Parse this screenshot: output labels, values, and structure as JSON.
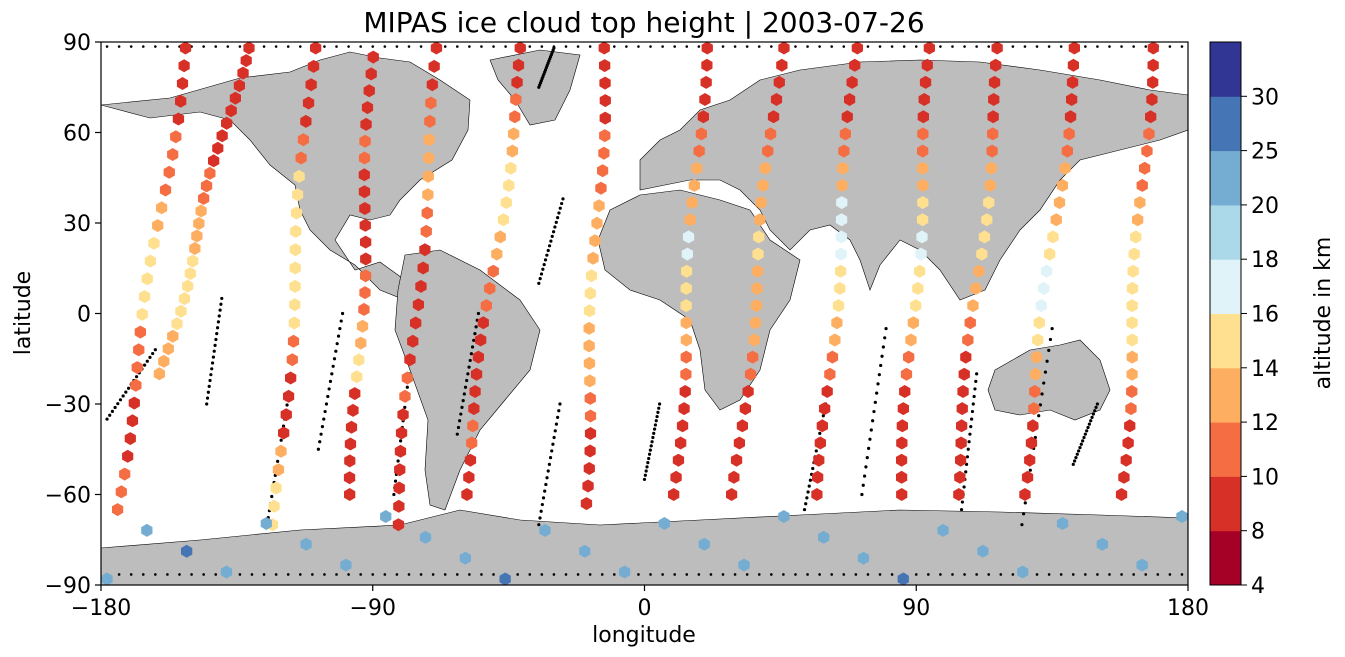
{
  "chart_data": {
    "type": "scatter",
    "title": "MIPAS ice cloud top height | 2003-07-26",
    "xlabel": "longitude",
    "ylabel": "latitude",
    "xlim": [
      -180,
      180
    ],
    "ylim": [
      -90,
      90
    ],
    "xticks": [
      "−180",
      "−90",
      "0",
      "90",
      "180"
    ],
    "yticks": [
      "90",
      "60",
      "30",
      "0",
      "−30",
      "−60",
      "−90"
    ],
    "background_map": "world coastlines, land shaded gray",
    "colorbar": {
      "label": "altitude in km",
      "ticks": [
        "4",
        "8",
        "10",
        "12",
        "14",
        "16",
        "18",
        "20",
        "25",
        "30"
      ],
      "colors": [
        "#a50026",
        "#d73027",
        "#f46d43",
        "#fdae61",
        "#fee090",
        "#e0f3f8",
        "#abd9e9",
        "#74add1",
        "#4575b4",
        "#313695"
      ]
    },
    "orbit_tracks": [
      {
        "start": [
          -152,
          88
        ],
        "end": [
          -175,
          -65
        ],
        "values": [
          8,
          9,
          10,
          11,
          13,
          15,
          14,
          11,
          10,
          9,
          8,
          10
        ]
      },
      {
        "start": [
          -132,
          88
        ],
        "end": [
          -160,
          -20
        ],
        "values": [
          8,
          8,
          9,
          10,
          12,
          14,
          15,
          13
        ]
      },
      {
        "start": [
          -110,
          88
        ],
        "end": [
          -122,
          -70
        ],
        "values": [
          8,
          9,
          10,
          14,
          15,
          15,
          14,
          11,
          9,
          8,
          13,
          14
        ]
      },
      {
        "start": [
          -90,
          85
        ],
        "end": [
          -97,
          -60
        ],
        "values": [
          8,
          9,
          10,
          9,
          8,
          9,
          10,
          13,
          14,
          9,
          8,
          8
        ]
      },
      {
        "start": [
          -68,
          88
        ],
        "end": [
          -82,
          -70
        ],
        "values": [
          9,
          10,
          12,
          13,
          10,
          9,
          8,
          9,
          10,
          8,
          9,
          8
        ]
      },
      {
        "start": [
          -40,
          88
        ],
        "end": [
          -60,
          -60
        ],
        "values": [
          9,
          10,
          12,
          14,
          15,
          13,
          10,
          9,
          8,
          9,
          10,
          8
        ]
      },
      {
        "start": [
          -13,
          88
        ],
        "end": [
          -20,
          -63
        ],
        "values": [
          8,
          9,
          10,
          11,
          12,
          13,
          14,
          13,
          12,
          10,
          9,
          8
        ]
      },
      {
        "start": [
          20,
          88
        ],
        "end": [
          10,
          -60
        ],
        "values": [
          8,
          9,
          10,
          12,
          13,
          16,
          14,
          12,
          10,
          9,
          8,
          8
        ]
      },
      {
        "start": [
          45,
          88
        ],
        "end": [
          30,
          -60
        ],
        "values": [
          8,
          9,
          10,
          12,
          13,
          14,
          13,
          12,
          10,
          9,
          8,
          8
        ]
      },
      {
        "start": [
          70,
          88
        ],
        "end": [
          58,
          -60
        ],
        "values": [
          8,
          9,
          10,
          12,
          16,
          17,
          15,
          13,
          11,
          9,
          8,
          8
        ]
      },
      {
        "start": [
          95,
          88
        ],
        "end": [
          85,
          -60
        ],
        "values": [
          8,
          9,
          10,
          13,
          15,
          16,
          14,
          12,
          10,
          9,
          8,
          8
        ]
      },
      {
        "start": [
          118,
          88
        ],
        "end": [
          103,
          -60
        ],
        "values": [
          8,
          9,
          10,
          12,
          14,
          15,
          13,
          11,
          9,
          8,
          9,
          8
        ]
      },
      {
        "start": [
          143,
          88
        ],
        "end": [
          125,
          -60
        ],
        "values": [
          8,
          9,
          10,
          12,
          13,
          15,
          16,
          14,
          12,
          10,
          9,
          8
        ]
      },
      {
        "start": [
          168,
          88
        ],
        "end": [
          158,
          -60
        ],
        "values": [
          8,
          9,
          10,
          11,
          12,
          14,
          15,
          14,
          12,
          10,
          9,
          8
        ]
      }
    ],
    "southern_points": {
      "lat_range": [
        -88,
        -65
      ],
      "values": [
        20,
        22,
        25,
        21,
        20,
        24,
        22,
        20,
        21,
        23,
        25,
        20,
        22,
        21,
        24,
        20,
        22,
        23,
        21,
        20,
        25,
        22,
        20,
        21,
        23,
        24,
        20,
        22
      ]
    },
    "gap_tracks": [
      {
        "start": [
          -162,
          -12
        ],
        "end": [
          -178,
          -35
        ]
      },
      {
        "start": [
          -140,
          5
        ],
        "end": [
          -145,
          -30
        ]
      },
      {
        "start": [
          -118,
          -28
        ],
        "end": [
          -125,
          -70
        ]
      },
      {
        "start": [
          -100,
          0
        ],
        "end": [
          -108,
          -45
        ]
      },
      {
        "start": [
          -78,
          -20
        ],
        "end": [
          -83,
          -60
        ]
      },
      {
        "start": [
          -55,
          0
        ],
        "end": [
          -62,
          -40
        ]
      },
      {
        "start": [
          -27,
          38
        ],
        "end": [
          -35,
          10
        ]
      },
      {
        "start": [
          -28,
          -30
        ],
        "end": [
          -35,
          -70
        ]
      },
      {
        "start": [
          5,
          -30
        ],
        "end": [
          0,
          -55
        ]
      },
      {
        "start": [
          60,
          -30
        ],
        "end": [
          53,
          -65
        ]
      },
      {
        "start": [
          80,
          -5
        ],
        "end": [
          72,
          -60
        ]
      },
      {
        "start": [
          110,
          -20
        ],
        "end": [
          105,
          -65
        ]
      },
      {
        "start": [
          135,
          -5
        ],
        "end": [
          125,
          -70
        ]
      },
      {
        "start": [
          150,
          -30
        ],
        "end": [
          142,
          -50
        ]
      },
      {
        "start": [
          -30,
          88
        ],
        "end": [
          -35,
          75
        ]
      }
    ]
  }
}
